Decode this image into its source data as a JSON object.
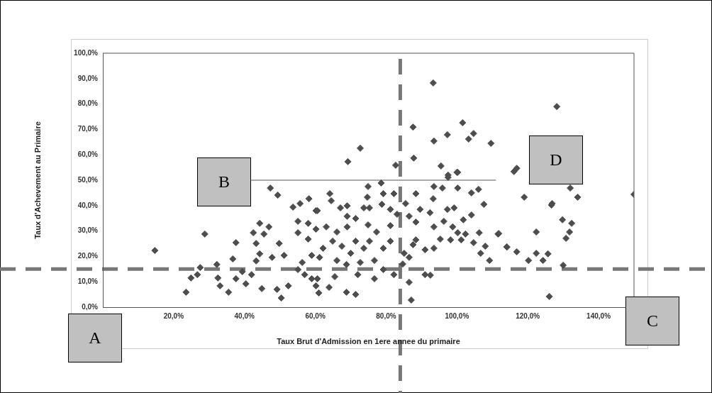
{
  "chart_data": {
    "type": "scatter",
    "xlabel": "Taux Brut d'Admission en 1ere annee du primaire",
    "ylabel": "Taux d'Achevement au Primaire",
    "xlim": [
      0,
      150
    ],
    "ylim": [
      0,
      100
    ],
    "xticks": [
      {
        "value": 0,
        "label": null
      },
      {
        "value": 20,
        "label": "20,0%"
      },
      {
        "value": 40,
        "label": "40,0%"
      },
      {
        "value": 60,
        "label": "60,0%"
      },
      {
        "value": 80,
        "label": "80,0%"
      },
      {
        "value": 100,
        "label": "100,0%"
      },
      {
        "value": 120,
        "label": "120,0%"
      },
      {
        "value": 140,
        "label": "140,0%"
      }
    ],
    "yticks": [
      {
        "value": 0,
        "label": "0,0%"
      },
      {
        "value": 10,
        "label": "10,0%"
      },
      {
        "value": 20,
        "label": "20,0%"
      },
      {
        "value": 30,
        "label": "30,0%"
      },
      {
        "value": 40,
        "label": "40,0%"
      },
      {
        "value": 50,
        "label": "50,0%"
      },
      {
        "value": 60,
        "label": "60,0%"
      },
      {
        "value": 70,
        "label": "70,0%"
      },
      {
        "value": 80,
        "label": "80,0%"
      },
      {
        "value": 90,
        "label": "90,0%"
      },
      {
        "value": 100,
        "label": "100,0%"
      }
    ],
    "series": [
      {
        "type": "scatter",
        "color": "#4d4d4d",
        "marker": "diamond",
        "x": [
          14.7,
          28.8,
          23.5,
          24.9,
          26.7,
          27.5,
          32.2,
          32.5,
          33.1,
          35.5,
          36.7,
          37.6,
          37.6,
          39.4,
          40.4,
          42,
          42.5,
          43.3,
          44.3,
          46.9,
          45.5,
          44.3,
          43.3,
          44.9,
          47.3,
          49.4,
          47.8,
          49.2,
          49.8,
          51.2,
          50.4,
          52.4,
          53.7,
          55.7,
          58.2,
          55.1,
          58,
          55.1,
          58,
          60.2,
          55.1,
          57,
          59,
          60.2,
          56.3,
          59,
          60.2,
          93.3,
          87.6,
          101.6,
          104.7,
          103.3,
          97.3,
          93.5,
          109.6,
          72.7,
          69.2,
          82.7,
          87.8,
          95.5,
          97.5,
          100,
          64.1,
          64.5,
          74.9,
          78.6,
          74.7,
          79.2,
          82.2,
          85.5,
          88.4,
          93.5,
          95.9,
          97.5,
          100.2,
          100.2,
          93.3,
          104.1,
          106.1,
          107.6,
          67.1,
          69,
          69,
          71.4,
          73.7,
          75.3,
          78.8,
          81.2,
          83.1,
          86.5,
          89.6,
          92.4,
          97.3,
          99.2,
          101.8,
          104.1,
          60.6,
          63.1,
          66.1,
          69,
          74.9,
          77.3,
          81.2,
          88.4,
          93.5,
          96.3,
          98.8,
          100.2,
          102.4,
          106.3,
          111.6,
          114.1,
          104.7,
          108,
          106.7,
          109.2,
          101.2,
          98.2,
          95.3,
          93.5,
          91,
          87.6,
          86.5,
          84.7,
          81.2,
          79.2,
          75.3,
          73.7,
          71.4,
          70,
          67.5,
          64.9,
          62.2,
          61.2,
          66.1,
          68.8,
          72.7,
          76.7,
          79.2,
          82.2,
          76.7,
          72,
          65.5,
          60.6,
          63.9,
          68.8,
          71.4,
          61,
          86.5,
          87.1,
          91,
          92.5,
          85.1,
          88.4,
          128.2,
          116.1,
          116.9,
          132,
          134.1,
          119,
          126.9,
          126.7,
          129.8,
          132.4,
          131.8,
          130.8,
          111.8,
          122.4,
          114.1,
          116.9,
          122.4,
          125.7,
          120.2,
          124.3,
          130,
          126.1,
          150
        ],
        "values": [
          22.3,
          28.8,
          5.9,
          11.5,
          12.8,
          15.6,
          16.8,
          11.5,
          8.4,
          5.9,
          19,
          25.4,
          11.2,
          14,
          9.2,
          12.8,
          29.3,
          25.1,
          33,
          31.6,
          28.8,
          21,
          18.2,
          7.3,
          46.9,
          44.1,
          19.6,
          7,
          25.1,
          20.4,
          3.6,
          8.4,
          39.4,
          40.8,
          42.7,
          33.8,
          33,
          29.3,
          26.8,
          38,
          14.8,
          12.8,
          11.2,
          8.4,
          17.6,
          20.4,
          30.7,
          88.3,
          70.9,
          72.6,
          68.4,
          66.2,
          67.9,
          65.4,
          64.5,
          62.6,
          57.3,
          55.9,
          58.7,
          55.6,
          52,
          53.1,
          44.7,
          41.9,
          47.5,
          48.9,
          43.3,
          44.7,
          44.7,
          40.8,
          44.7,
          47.5,
          46.9,
          51.1,
          53.1,
          46.9,
          42.7,
          45,
          46.4,
          40.5,
          39.1,
          39.9,
          35.8,
          34.9,
          39.1,
          39.1,
          40.5,
          38.5,
          36.6,
          35.8,
          38.5,
          37.2,
          38.5,
          39.1,
          34.4,
          36.3,
          38,
          31.6,
          29.6,
          31.6,
          32.4,
          29.6,
          32.1,
          33.5,
          31.6,
          33.8,
          31.6,
          29.3,
          28.8,
          29.3,
          28.8,
          23.7,
          25.4,
          24,
          21.2,
          18.4,
          26.5,
          26.5,
          26.8,
          23.2,
          22.6,
          24.6,
          19.6,
          17,
          26,
          23.2,
          26,
          23.2,
          26,
          21.2,
          24,
          26,
          23.2,
          19.6,
          18.4,
          16.8,
          17.6,
          18.4,
          14.8,
          12.8,
          11.2,
          12.8,
          12,
          11.2,
          7.8,
          5.9,
          5,
          5.6,
          9.8,
          2.8,
          12.8,
          12.6,
          21.2,
          26.5,
          79,
          53.4,
          54.7,
          46.9,
          43.3,
          43.3,
          40.8,
          40.2,
          34.4,
          33,
          29.6,
          27.1,
          29,
          29.6,
          23.7,
          21.8,
          21.2,
          21,
          18.4,
          18.4,
          16.5,
          4.2,
          44.4
        ]
      },
      {
        "type": "line",
        "color": "#555555",
        "x": [
          27,
          111
        ],
        "values": [
          50,
          50
        ]
      }
    ],
    "ref_lines": [
      {
        "axis": "x",
        "value": 84,
        "color": "#777777",
        "line_style": "dashed"
      },
      {
        "axis": "y",
        "value": 15,
        "color": "#777777",
        "line_style": "dashed"
      }
    ],
    "annotations": [
      "A",
      "B",
      "C",
      "D"
    ]
  }
}
